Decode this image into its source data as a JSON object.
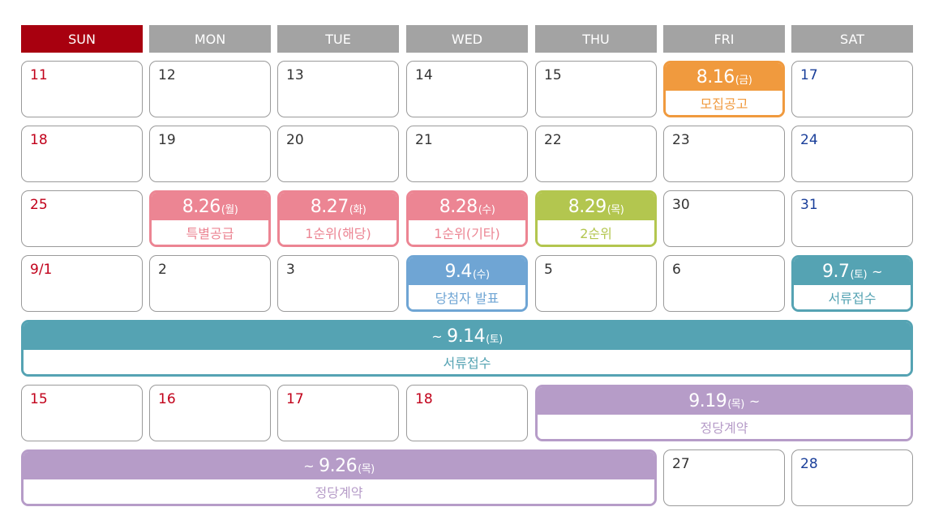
{
  "headers": [
    "SUN",
    "MON",
    "TUE",
    "WED",
    "THU",
    "FRI",
    "SAT"
  ],
  "colors": {
    "sun_header": "#a8000f",
    "header": "#a3a3a3",
    "orange": "#f09a3e",
    "pink": "#ec8593",
    "green": "#b3c64f",
    "blue": "#6fa5d4",
    "teal": "#55a3b3",
    "purple": "#b69cc8"
  },
  "days": {
    "r1": [
      "11",
      "12",
      "13",
      "14",
      "15",
      "17"
    ],
    "r2": [
      "18",
      "19",
      "20",
      "21",
      "22",
      "23",
      "24"
    ],
    "r3": [
      "25",
      "30",
      "31"
    ],
    "r4": [
      "9/1",
      "2",
      "3",
      "5",
      "6"
    ],
    "r6": [
      "15",
      "16",
      "17",
      "18"
    ],
    "r7": [
      "27",
      "28"
    ]
  },
  "events": {
    "recruit": {
      "date": "8.16",
      "day": "(금)",
      "label": "모집공고"
    },
    "special": {
      "date": "8.26",
      "day": "(월)",
      "label": "특별공급"
    },
    "first_local": {
      "date": "8.27",
      "day": "(화)",
      "label": "1순위(해당)"
    },
    "first_other": {
      "date": "8.28",
      "day": "(수)",
      "label": "1순위(기타)"
    },
    "second": {
      "date": "8.29",
      "day": "(목)",
      "label": "2순위"
    },
    "winner": {
      "date": "9.4",
      "day": "(수)",
      "label": "당첨자 발표"
    },
    "docs_start": {
      "date": "9.7",
      "day": "(토)",
      "tilde": "~",
      "label": "서류접수"
    },
    "docs_end": {
      "tilde": "~",
      "date": "9.14",
      "day": "(토)",
      "label": "서류접수"
    },
    "contract_start": {
      "date": "9.19",
      "day": "(목)",
      "tilde": "~",
      "label": "정당계약"
    },
    "contract_end": {
      "tilde": "~",
      "date": "9.26",
      "day": "(목)",
      "label": "정당계약"
    }
  }
}
